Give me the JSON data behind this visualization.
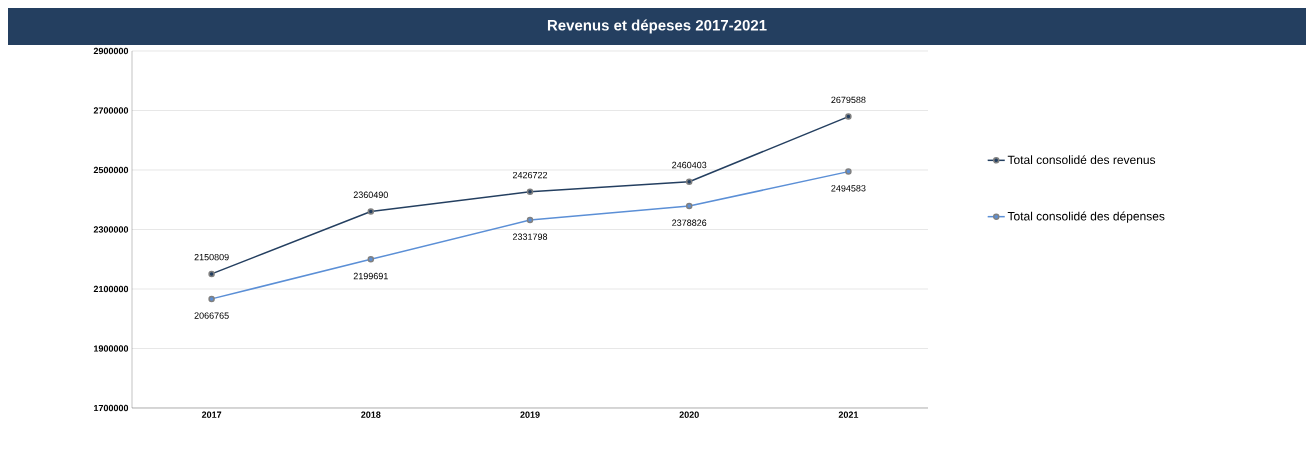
{
  "chart_data": {
    "type": "line",
    "title": "Revenus et dépeses 2017-2021",
    "categories": [
      "2017",
      "2018",
      "2019",
      "2020",
      "2021"
    ],
    "series": [
      {
        "name": "Total  consolidé des revenus",
        "color": "#243f60",
        "values": [
          2150809,
          2360490,
          2426722,
          2460403,
          2679588
        ]
      },
      {
        "name": "Total consolidé des dépenses",
        "color": "#5b8fd6",
        "values": [
          2066765,
          2199691,
          2331798,
          2378826,
          2494583
        ]
      }
    ],
    "ylim": [
      1700000,
      2900000
    ],
    "yticks": [
      1700000,
      1900000,
      2100000,
      2300000,
      2500000,
      2700000,
      2900000
    ],
    "grid": "y",
    "legend": "right",
    "marker": "circle",
    "line_style": "solid",
    "data_labels": true
  }
}
